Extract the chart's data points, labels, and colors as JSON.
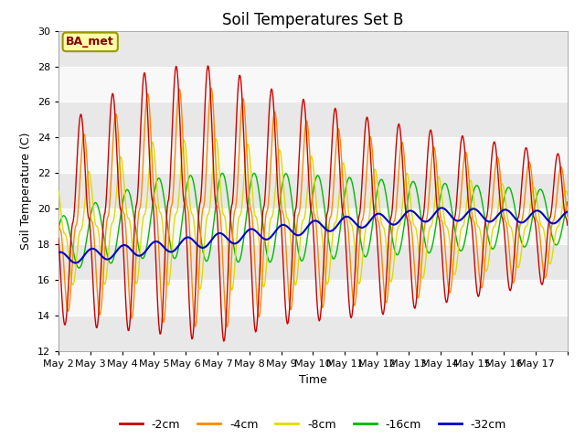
{
  "title": "Soil Temperatures Set B",
  "xlabel": "Time",
  "ylabel": "Soil Temperature (C)",
  "ylim": [
    12,
    30
  ],
  "yticks": [
    12,
    14,
    16,
    18,
    20,
    22,
    24,
    26,
    28,
    30
  ],
  "x_labels": [
    "May 2",
    "May 3",
    "May 4",
    "May 5",
    "May 6",
    "May 7",
    "May 8",
    "May 9",
    "May 10",
    "May 11",
    "May 12",
    "May 13",
    "May 14",
    "May 15",
    "May 16",
    "May 17"
  ],
  "n_days": 16,
  "points_per_day": 48,
  "legend_label": "BA_met",
  "colors": {
    "-2cm": "#cc0000",
    "-4cm": "#ff8800",
    "-8cm": "#dddd00",
    "-16cm": "#00bb00",
    "-32cm": "#0000cc"
  },
  "fig_bg": "#ffffff",
  "ax_bg": "#f0f0f0",
  "grid_color": "#ffffff",
  "title_fontsize": 12,
  "tick_fontsize": 8,
  "label_fontsize": 9,
  "annot_fontsize": 9,
  "linewidth": 1.0,
  "legend_fontsize": 9
}
